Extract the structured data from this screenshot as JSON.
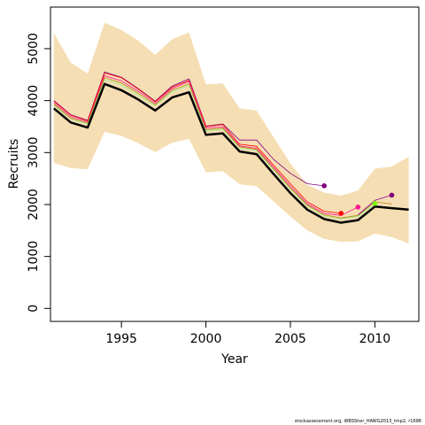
{
  "chart_data": {
    "type": "line",
    "xlabel": "Year",
    "ylabel": "Recruits",
    "xlim": [
      1990.8,
      2012.6
    ],
    "ylim": [
      -250,
      5800
    ],
    "xticks": [
      1995,
      2000,
      2005,
      2010
    ],
    "yticks": [
      0,
      1000,
      2000,
      3000,
      4000,
      5000
    ],
    "band_color": "#f5deb3",
    "band": {
      "x": [
        1991,
        1992,
        1993,
        1994,
        1995,
        1996,
        1997,
        1998,
        1999,
        2000,
        2001,
        2002,
        2003,
        2004,
        2005,
        2006,
        2007,
        2008,
        2009,
        2010,
        2011,
        2012
      ],
      "upper": [
        5300,
        4730,
        4520,
        5500,
        5360,
        5150,
        4880,
        5180,
        5310,
        4310,
        4330,
        3850,
        3810,
        3300,
        2790,
        2380,
        2230,
        2170,
        2270,
        2690,
        2730,
        2920
      ],
      "lower": [
        2800,
        2700,
        2680,
        3400,
        3320,
        3180,
        3010,
        3190,
        3260,
        2620,
        2640,
        2390,
        2350,
        2060,
        1770,
        1500,
        1340,
        1280,
        1290,
        1440,
        1370,
        1250
      ]
    },
    "series": [
      {
        "color": "#000000",
        "width": 2.5,
        "x": [
          1991,
          1992,
          1993,
          1994,
          1995,
          1996,
          1997,
          1998,
          1999,
          2000,
          2001,
          2002,
          2003,
          2004,
          2005,
          2006,
          2007,
          2008,
          2009,
          2010,
          2011,
          2012
        ],
        "values": [
          3850,
          3580,
          3480,
          4320,
          4200,
          4020,
          3810,
          4060,
          4160,
          3340,
          3370,
          3020,
          2970,
          2590,
          2220,
          1900,
          1720,
          1650,
          1700,
          1960,
          1930,
          1900
        ]
      },
      {
        "color": "#800080",
        "width": 0.8,
        "x": [
          1991,
          1992,
          1993,
          1994,
          1995,
          1996,
          1997,
          1998,
          1999,
          2000,
          2001,
          2002,
          2003,
          2004,
          2005,
          2006,
          2007
        ],
        "values": [
          4000,
          3730,
          3620,
          4550,
          4450,
          4230,
          3990,
          4280,
          4420,
          3510,
          3550,
          3240,
          3240,
          2870,
          2600,
          2400,
          2360
        ]
      },
      {
        "color": "#ff0000",
        "width": 0.8,
        "x": [
          1991,
          1992,
          1993,
          1994,
          1995,
          1996,
          1997,
          1998,
          1999,
          2000,
          2001,
          2002,
          2003,
          2004,
          2005,
          2006,
          2007,
          2008
        ],
        "values": [
          3990,
          3720,
          3610,
          4530,
          4440,
          4220,
          3980,
          4260,
          4390,
          3500,
          3540,
          3160,
          3120,
          2760,
          2400,
          2050,
          1870,
          1830
        ]
      },
      {
        "color": "#ff1493",
        "width": 0.8,
        "x": [
          1991,
          1992,
          1993,
          1994,
          1995,
          1996,
          1997,
          1998,
          1999,
          2000,
          2001,
          2002,
          2003,
          2004,
          2005,
          2006,
          2007,
          2008,
          2009
        ],
        "values": [
          3960,
          3690,
          3590,
          4480,
          4380,
          4180,
          3950,
          4230,
          4370,
          3470,
          3500,
          3130,
          3080,
          2720,
          2350,
          2010,
          1830,
          1790,
          1950
        ]
      },
      {
        "color": "#90ee90",
        "width": 0.8,
        "x": [
          1991,
          1992,
          1993,
          1994,
          1995,
          1996,
          1997,
          1998,
          1999,
          2000,
          2001,
          2002,
          2003,
          2004,
          2005,
          2006,
          2007,
          2008,
          2009,
          2010
        ],
        "values": [
          3910,
          3650,
          3550,
          4400,
          4300,
          4100,
          3900,
          4170,
          4290,
          3420,
          3450,
          3090,
          3040,
          2670,
          2300,
          1970,
          1780,
          1720,
          1770,
          2020
        ]
      },
      {
        "color": "#b8860b",
        "width": 0.8,
        "x": [
          1991,
          1992,
          1993,
          1994,
          1995,
          1996,
          1997,
          1998,
          1999,
          2000,
          2001,
          2002,
          2003,
          2004,
          2005,
          2006,
          2007,
          2008,
          2009,
          2010,
          2011
        ],
        "values": [
          3930,
          3660,
          3570,
          4440,
          4340,
          4140,
          3920,
          4200,
          4320,
          3440,
          3470,
          3110,
          3060,
          2690,
          2320,
          1990,
          1800,
          1740,
          1790,
          2050,
          2010
        ]
      },
      {
        "color": "#8b008b",
        "width": 0.8,
        "x": [
          2009,
          2010,
          2011
        ],
        "values": [
          1800,
          2080,
          2180
        ]
      }
    ],
    "end_points": [
      {
        "x": 2007,
        "y": 2360,
        "color": "#800080"
      },
      {
        "x": 2008,
        "y": 1830,
        "color": "#ff0000"
      },
      {
        "x": 2009,
        "y": 1950,
        "color": "#ff1493"
      },
      {
        "x": 2010,
        "y": 2020,
        "color": "#7cfc00"
      },
      {
        "x": 2011,
        "y": 2180,
        "color": "#800080"
      }
    ]
  },
  "footer_text": "stockassessment.org, WBSSher_HAWG2013_tmp2, r1696"
}
